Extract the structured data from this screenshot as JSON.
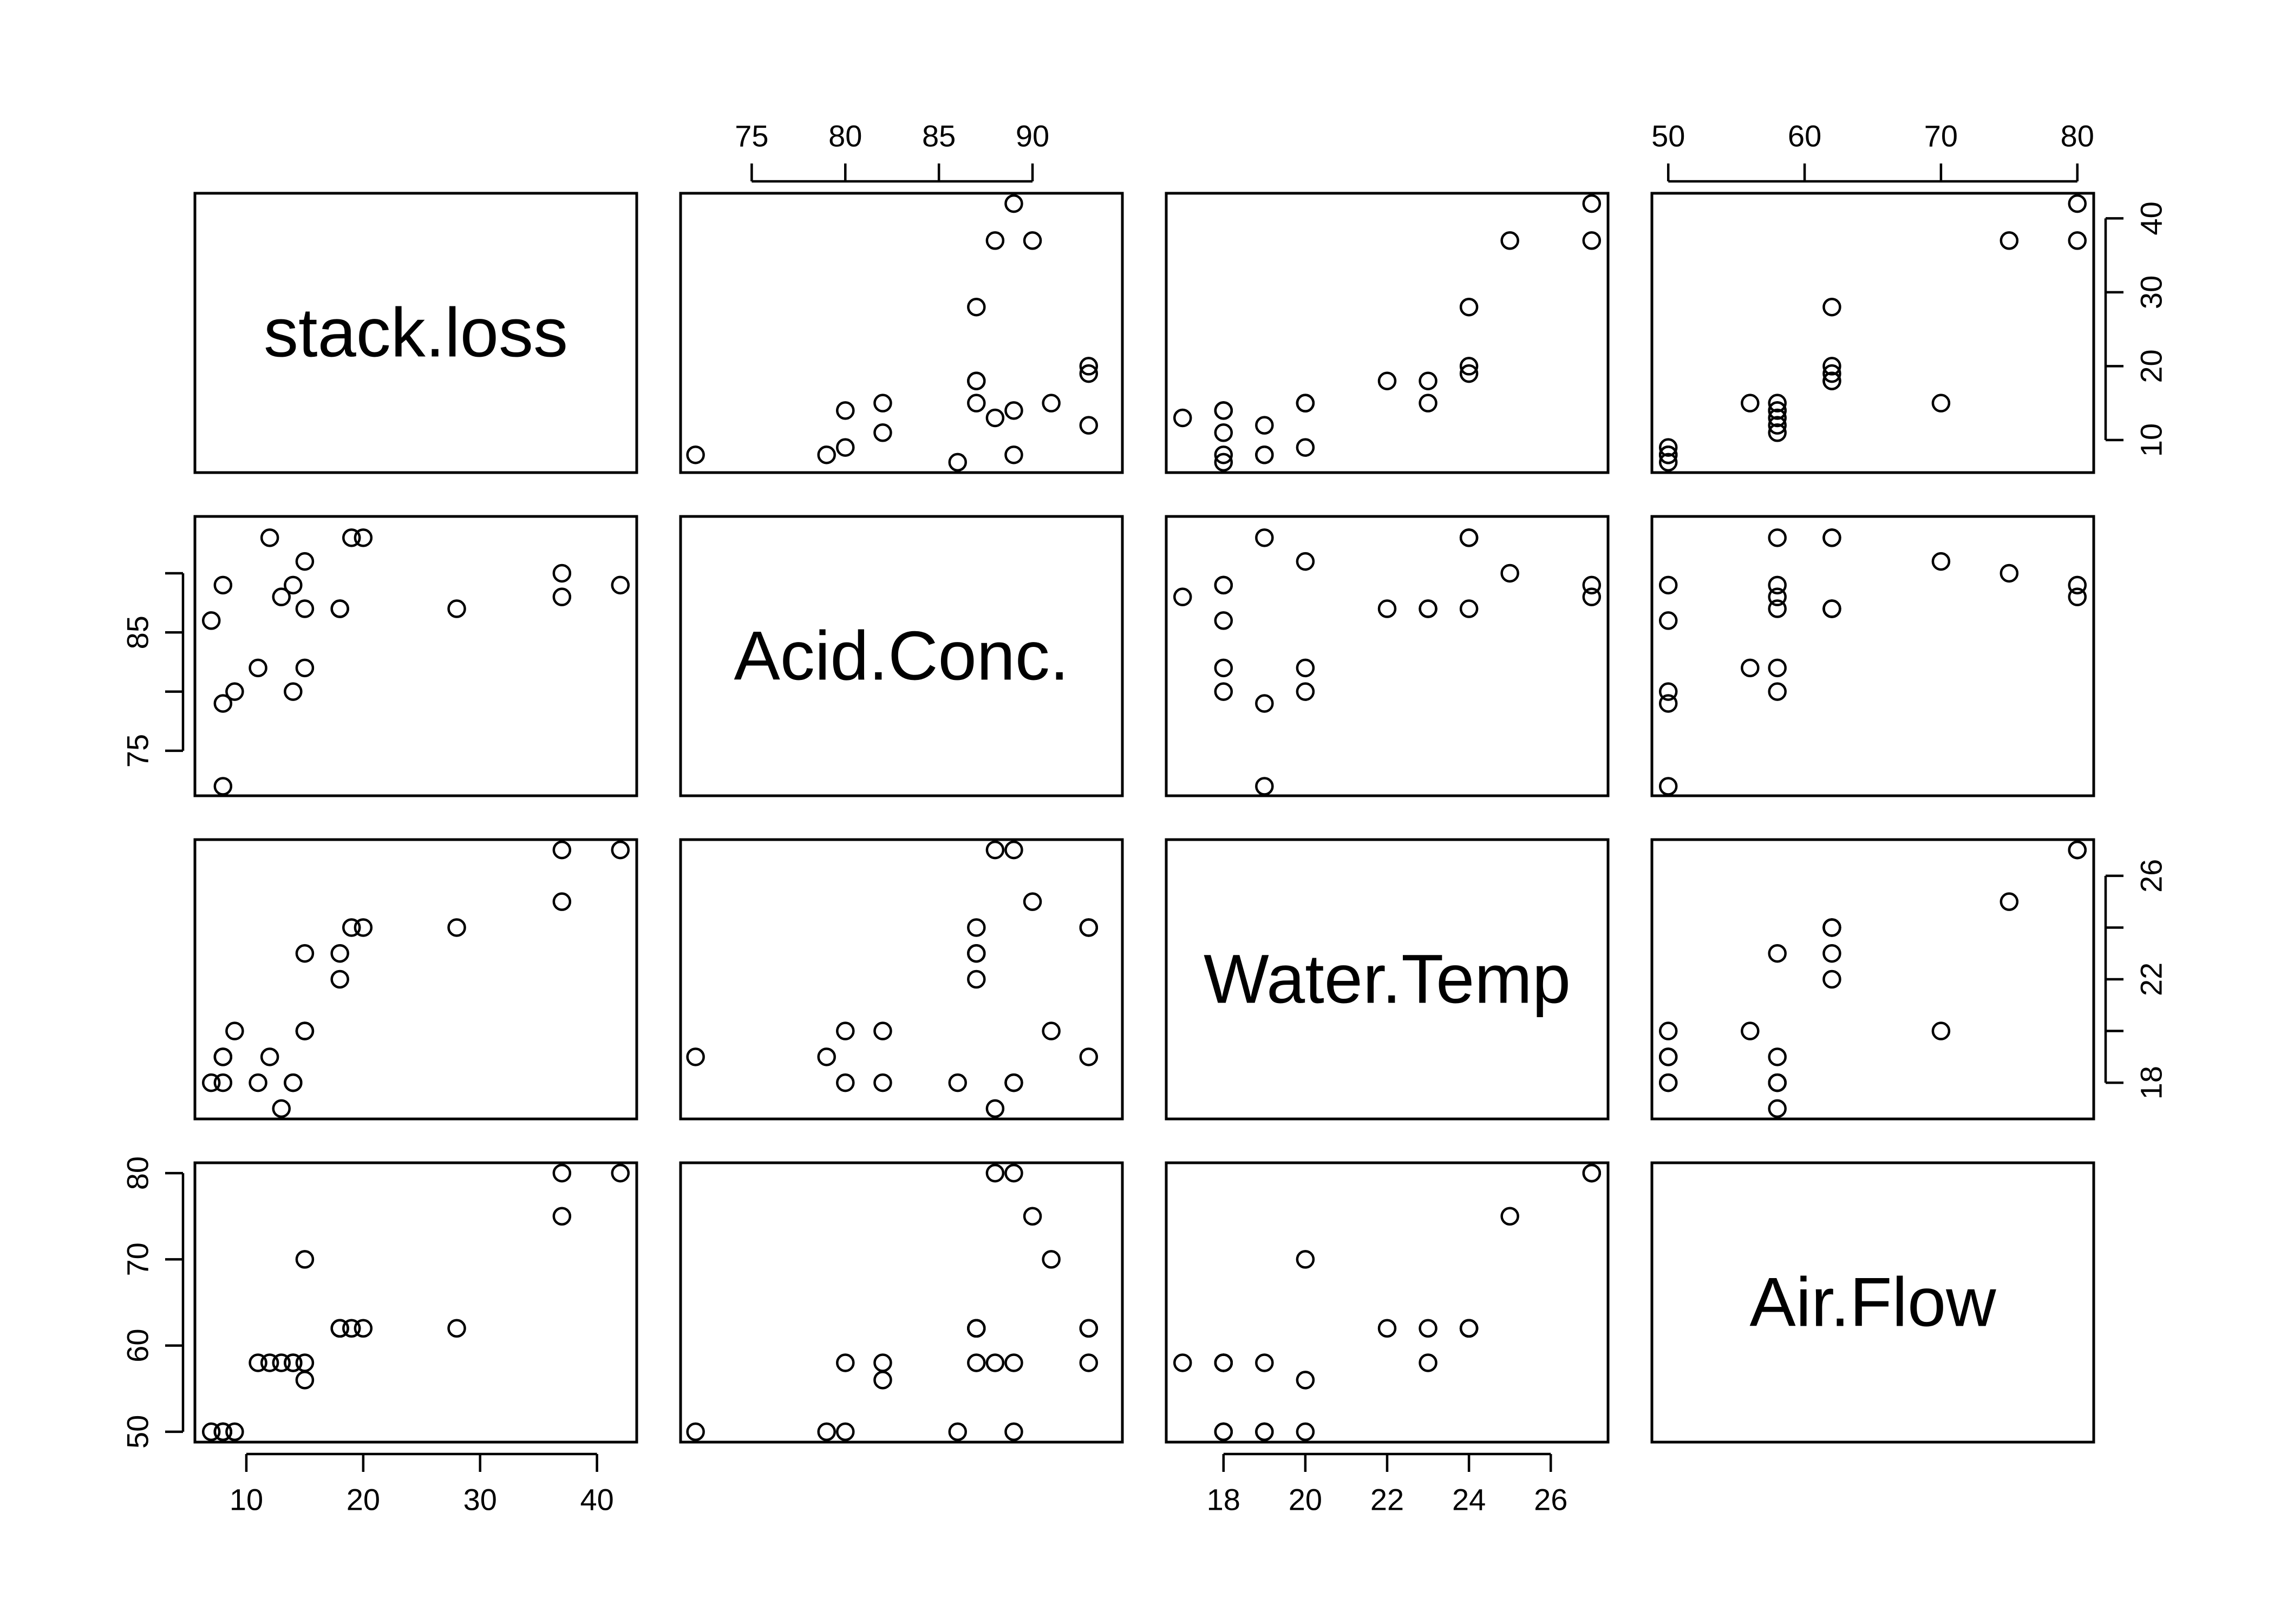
{
  "chart_data": {
    "type": "scatter",
    "layout": "pairs-matrix",
    "variables": [
      "stack.loss",
      "Acid.Conc.",
      "Water.Temp",
      "Air.Flow"
    ],
    "ranges": {
      "stack.loss": [
        5.6,
        43.4
      ],
      "Acid.Conc.": [
        71.2,
        94.8
      ],
      "Water.Temp": [
        16.6,
        27.4
      ],
      "Air.Flow": [
        48.8,
        81.2
      ]
    },
    "ticks": {
      "stack.loss": [
        10,
        20,
        30,
        40
      ],
      "Acid.Conc.": [
        75,
        80,
        85,
        90
      ],
      "Water.Temp": [
        18,
        20,
        22,
        24,
        26
      ],
      "Air.Flow": [
        50,
        60,
        70,
        80
      ]
    },
    "tick_labels": {
      "stack.loss": [
        "10",
        "20",
        "30",
        "40"
      ],
      "Acid.Conc.": [
        "75",
        "80",
        "85",
        "90"
      ],
      "Water.Temp": [
        "18",
        "20",
        "22",
        "24",
        "26"
      ],
      "Air.Flow": [
        "50",
        "60",
        "70",
        "80"
      ]
    },
    "label_ticks": {
      "stack.loss": [
        10,
        20,
        30,
        40
      ],
      "Acid.Conc.": [
        75,
        85
      ],
      "Water.Temp": [
        18,
        22,
        26
      ],
      "Air.Flow": [
        50,
        60,
        70,
        80
      ]
    },
    "label_tick_labels": {
      "stack.loss": [
        "10",
        "20",
        "30",
        "40"
      ],
      "Acid.Conc.": [
        "75",
        "85"
      ],
      "Water.Temp": [
        "18",
        "22",
        "26"
      ],
      "Air.Flow": [
        "50",
        "60",
        "70",
        "80"
      ]
    },
    "observations": [
      {
        "stack.loss": 42,
        "Acid.Conc.": 89,
        "Water.Temp": 27,
        "Air.Flow": 80
      },
      {
        "stack.loss": 37,
        "Acid.Conc.": 88,
        "Water.Temp": 27,
        "Air.Flow": 80
      },
      {
        "stack.loss": 37,
        "Acid.Conc.": 90,
        "Water.Temp": 25,
        "Air.Flow": 75
      },
      {
        "stack.loss": 28,
        "Acid.Conc.": 87,
        "Water.Temp": 24,
        "Air.Flow": 62
      },
      {
        "stack.loss": 18,
        "Acid.Conc.": 87,
        "Water.Temp": 22,
        "Air.Flow": 62
      },
      {
        "stack.loss": 18,
        "Acid.Conc.": 87,
        "Water.Temp": 23,
        "Air.Flow": 62
      },
      {
        "stack.loss": 19,
        "Acid.Conc.": 93,
        "Water.Temp": 24,
        "Air.Flow": 62
      },
      {
        "stack.loss": 20,
        "Acid.Conc.": 93,
        "Water.Temp": 24,
        "Air.Flow": 62
      },
      {
        "stack.loss": 15,
        "Acid.Conc.": 87,
        "Water.Temp": 23,
        "Air.Flow": 58
      },
      {
        "stack.loss": 14,
        "Acid.Conc.": 80,
        "Water.Temp": 18,
        "Air.Flow": 58
      },
      {
        "stack.loss": 14,
        "Acid.Conc.": 89,
        "Water.Temp": 18,
        "Air.Flow": 58
      },
      {
        "stack.loss": 13,
        "Acid.Conc.": 88,
        "Water.Temp": 17,
        "Air.Flow": 58
      },
      {
        "stack.loss": 11,
        "Acid.Conc.": 82,
        "Water.Temp": 18,
        "Air.Flow": 58
      },
      {
        "stack.loss": 12,
        "Acid.Conc.": 93,
        "Water.Temp": 19,
        "Air.Flow": 58
      },
      {
        "stack.loss": 8,
        "Acid.Conc.": 89,
        "Water.Temp": 18,
        "Air.Flow": 50
      },
      {
        "stack.loss": 7,
        "Acid.Conc.": 86,
        "Water.Temp": 18,
        "Air.Flow": 50
      },
      {
        "stack.loss": 8,
        "Acid.Conc.": 72,
        "Water.Temp": 19,
        "Air.Flow": 50
      },
      {
        "stack.loss": 8,
        "Acid.Conc.": 79,
        "Water.Temp": 19,
        "Air.Flow": 50
      },
      {
        "stack.loss": 9,
        "Acid.Conc.": 80,
        "Water.Temp": 20,
        "Air.Flow": 50
      },
      {
        "stack.loss": 15,
        "Acid.Conc.": 82,
        "Water.Temp": 20,
        "Air.Flow": 56
      },
      {
        "stack.loss": 15,
        "Acid.Conc.": 91,
        "Water.Temp": 20,
        "Air.Flow": 70
      }
    ],
    "marker": "open-circle",
    "grid": false,
    "title": "",
    "colors": {
      "points": "#000000",
      "axes": "#000000",
      "background": "#ffffff"
    }
  }
}
